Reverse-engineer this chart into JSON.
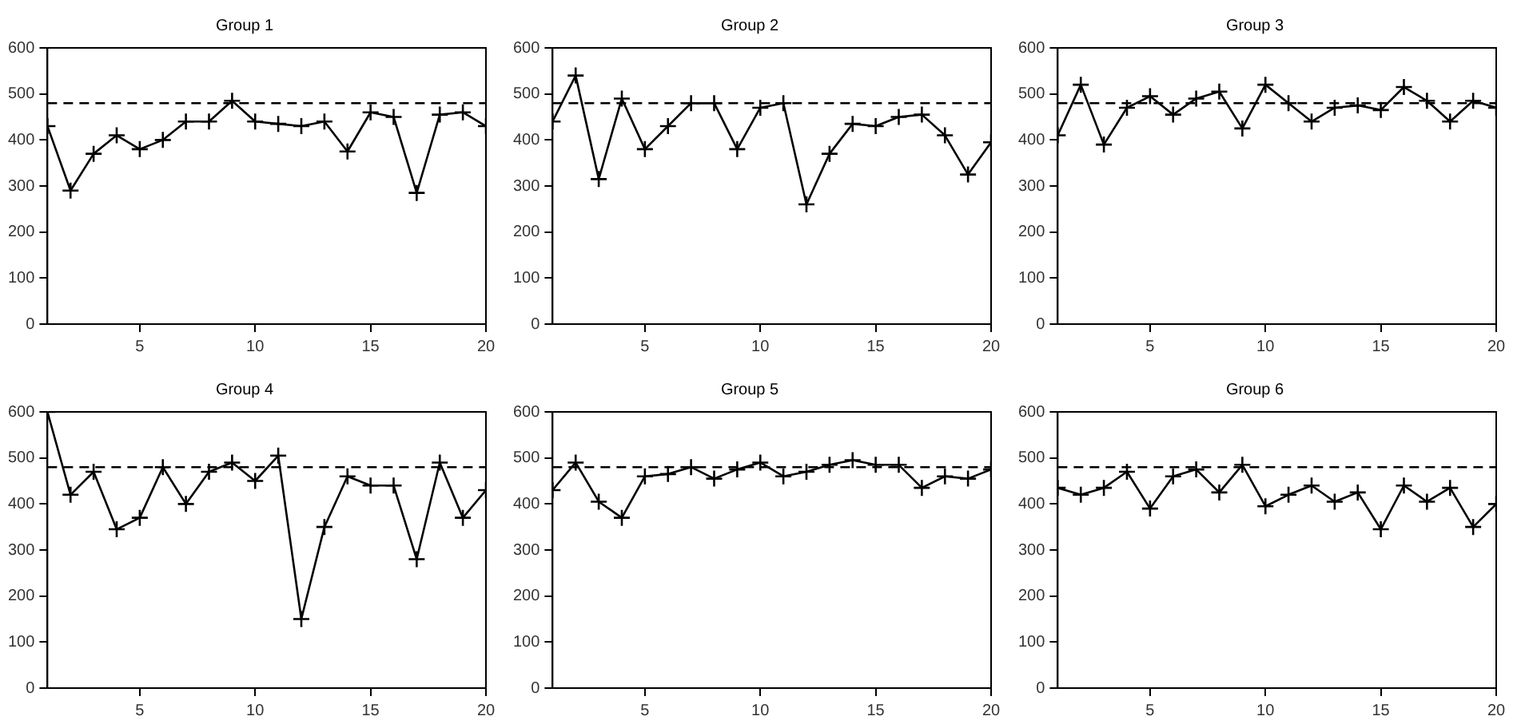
{
  "chart_data": [
    {
      "type": "line",
      "title": "Group 1",
      "x": [
        1,
        2,
        3,
        4,
        5,
        6,
        7,
        8,
        9,
        10,
        11,
        12,
        13,
        14,
        15,
        16,
        17,
        18,
        19,
        20
      ],
      "marker": "cross",
      "xlim": [
        1,
        20
      ],
      "xticks": [
        5,
        10,
        15,
        20
      ],
      "ylim": [
        0,
        600
      ],
      "yticks": [
        0,
        100,
        200,
        300,
        400,
        500,
        600
      ],
      "ref_lines": [
        {
          "axis": "y",
          "value": 480,
          "line_style": "dashed"
        }
      ],
      "series": [
        {
          "color": "#000000",
          "values": [
            430,
            290,
            370,
            410,
            380,
            400,
            440,
            440,
            485,
            440,
            435,
            430,
            440,
            375,
            460,
            450,
            285,
            455,
            460,
            430
          ]
        }
      ]
    },
    {
      "type": "line",
      "title": "Group 2",
      "x": [
        1,
        2,
        3,
        4,
        5,
        6,
        7,
        8,
        9,
        10,
        11,
        12,
        13,
        14,
        15,
        16,
        17,
        18,
        19,
        20
      ],
      "marker": "cross",
      "xlim": [
        1,
        20
      ],
      "xticks": [
        5,
        10,
        15,
        20
      ],
      "ylim": [
        0,
        600
      ],
      "yticks": [
        0,
        100,
        200,
        300,
        400,
        500,
        600
      ],
      "ref_lines": [
        {
          "axis": "y",
          "value": 480,
          "line_style": "dashed"
        }
      ],
      "series": [
        {
          "color": "#000000",
          "values": [
            440,
            540,
            315,
            490,
            380,
            430,
            480,
            480,
            380,
            470,
            480,
            260,
            370,
            435,
            430,
            450,
            455,
            410,
            325,
            395
          ]
        }
      ]
    },
    {
      "type": "line",
      "title": "Group 3",
      "x": [
        1,
        2,
        3,
        4,
        5,
        6,
        7,
        8,
        9,
        10,
        11,
        12,
        13,
        14,
        15,
        16,
        17,
        18,
        19,
        20
      ],
      "marker": "cross",
      "xlim": [
        1,
        20
      ],
      "xticks": [
        5,
        10,
        15,
        20
      ],
      "ylim": [
        0,
        600
      ],
      "yticks": [
        0,
        100,
        200,
        300,
        400,
        500,
        600
      ],
      "ref_lines": [
        {
          "axis": "y",
          "value": 480,
          "line_style": "dashed"
        }
      ],
      "series": [
        {
          "color": "#000000",
          "values": [
            410,
            520,
            390,
            470,
            495,
            455,
            490,
            505,
            425,
            520,
            480,
            440,
            470,
            475,
            465,
            515,
            485,
            440,
            485,
            470
          ]
        }
      ]
    },
    {
      "type": "line",
      "title": "Group 4",
      "x": [
        1,
        2,
        3,
        4,
        5,
        6,
        7,
        8,
        9,
        10,
        11,
        12,
        13,
        14,
        15,
        16,
        17,
        18,
        19,
        20
      ],
      "marker": "cross",
      "xlim": [
        1,
        20
      ],
      "xticks": [
        5,
        10,
        15,
        20
      ],
      "ylim": [
        0,
        600
      ],
      "yticks": [
        0,
        100,
        200,
        300,
        400,
        500,
        600
      ],
      "ref_lines": [
        {
          "axis": "y",
          "value": 480,
          "line_style": "dashed"
        }
      ],
      "series": [
        {
          "color": "#000000",
          "values": [
            600,
            420,
            470,
            345,
            370,
            480,
            400,
            470,
            490,
            450,
            505,
            150,
            350,
            460,
            440,
            440,
            280,
            490,
            370,
            430
          ]
        }
      ]
    },
    {
      "type": "line",
      "title": "Group 5",
      "x": [
        1,
        2,
        3,
        4,
        5,
        6,
        7,
        8,
        9,
        10,
        11,
        12,
        13,
        14,
        15,
        16,
        17,
        18,
        19,
        20
      ],
      "marker": "cross",
      "xlim": [
        1,
        20
      ],
      "xticks": [
        5,
        10,
        15,
        20
      ],
      "ylim": [
        0,
        600
      ],
      "yticks": [
        0,
        100,
        200,
        300,
        400,
        500,
        600
      ],
      "ref_lines": [
        {
          "axis": "y",
          "value": 480,
          "line_style": "dashed"
        }
      ],
      "series": [
        {
          "color": "#000000",
          "values": [
            430,
            490,
            405,
            370,
            460,
            465,
            480,
            455,
            475,
            490,
            460,
            470,
            485,
            495,
            485,
            485,
            435,
            460,
            455,
            475
          ]
        }
      ]
    },
    {
      "type": "line",
      "title": "Group 6",
      "x": [
        1,
        2,
        3,
        4,
        5,
        6,
        7,
        8,
        9,
        10,
        11,
        12,
        13,
        14,
        15,
        16,
        17,
        18,
        19,
        20
      ],
      "marker": "cross",
      "xlim": [
        1,
        20
      ],
      "xticks": [
        5,
        10,
        15,
        20
      ],
      "ylim": [
        0,
        600
      ],
      "yticks": [
        0,
        100,
        200,
        300,
        400,
        500,
        600
      ],
      "ref_lines": [
        {
          "axis": "y",
          "value": 480,
          "line_style": "dashed"
        }
      ],
      "series": [
        {
          "color": "#000000",
          "values": [
            435,
            420,
            435,
            470,
            390,
            460,
            475,
            425,
            485,
            395,
            420,
            440,
            405,
            425,
            345,
            440,
            405,
            435,
            350,
            400
          ]
        }
      ]
    }
  ]
}
